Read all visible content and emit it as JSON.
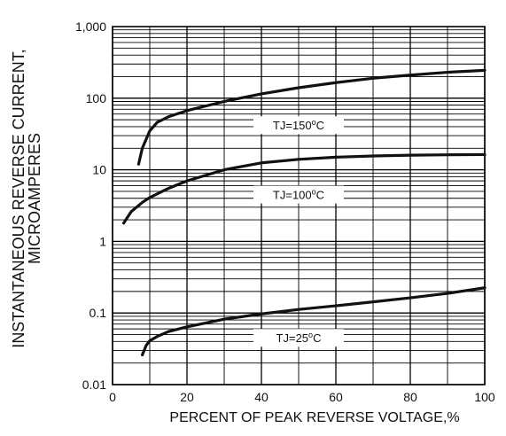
{
  "chart_data": {
    "type": "line",
    "xlabel": "PERCENT OF PEAK REVERSE VOLTAGE,%",
    "ylabel": [
      "INSTANTANEOUS REVERSE CURRENT,",
      "MICROAMPERES"
    ],
    "xlim": [
      0,
      100
    ],
    "ylim": [
      0.01,
      1000
    ],
    "yscale": "log",
    "grid": true,
    "x_ticks": [
      0,
      20,
      40,
      60,
      80,
      100
    ],
    "x_tick_labels": [
      "0",
      "20",
      "40",
      "60",
      "80",
      "100"
    ],
    "y_ticks": [
      0.01,
      0.1,
      1,
      10,
      100,
      1000
    ],
    "y_tick_labels": [
      "0.01",
      "0.1",
      "1",
      "10",
      "100",
      "1,000"
    ],
    "series": [
      {
        "name": "TJ=150°C",
        "label": "TJ=150",
        "label_x": 50,
        "label_y": 42,
        "x": [
          7,
          8,
          10,
          12,
          15,
          20,
          30,
          40,
          50,
          60,
          70,
          80,
          90,
          100
        ],
        "y": [
          12,
          20,
          35,
          46,
          55,
          67,
          90,
          115,
          140,
          165,
          190,
          210,
          230,
          245
        ]
      },
      {
        "name": "TJ=100°C",
        "label": "TJ=100",
        "label_x": 50,
        "label_y": 4.5,
        "x": [
          3,
          5,
          8,
          10,
          15,
          20,
          30,
          40,
          50,
          60,
          70,
          80,
          90,
          100
        ],
        "y": [
          1.8,
          2.6,
          3.5,
          4.1,
          5.5,
          7.0,
          10,
          12.5,
          14,
          15,
          15.6,
          16,
          16.2,
          16.3
        ]
      },
      {
        "name": "TJ=25°C",
        "label": "TJ=25",
        "label_x": 50,
        "label_y": 0.045,
        "x": [
          8,
          9,
          10,
          12,
          15,
          20,
          30,
          40,
          50,
          60,
          70,
          80,
          90,
          100
        ],
        "y": [
          0.026,
          0.035,
          0.041,
          0.047,
          0.055,
          0.064,
          0.082,
          0.097,
          0.112,
          0.126,
          0.143,
          0.163,
          0.188,
          0.225
        ]
      }
    ],
    "label_suffix": "o",
    "label_unit": "C"
  }
}
